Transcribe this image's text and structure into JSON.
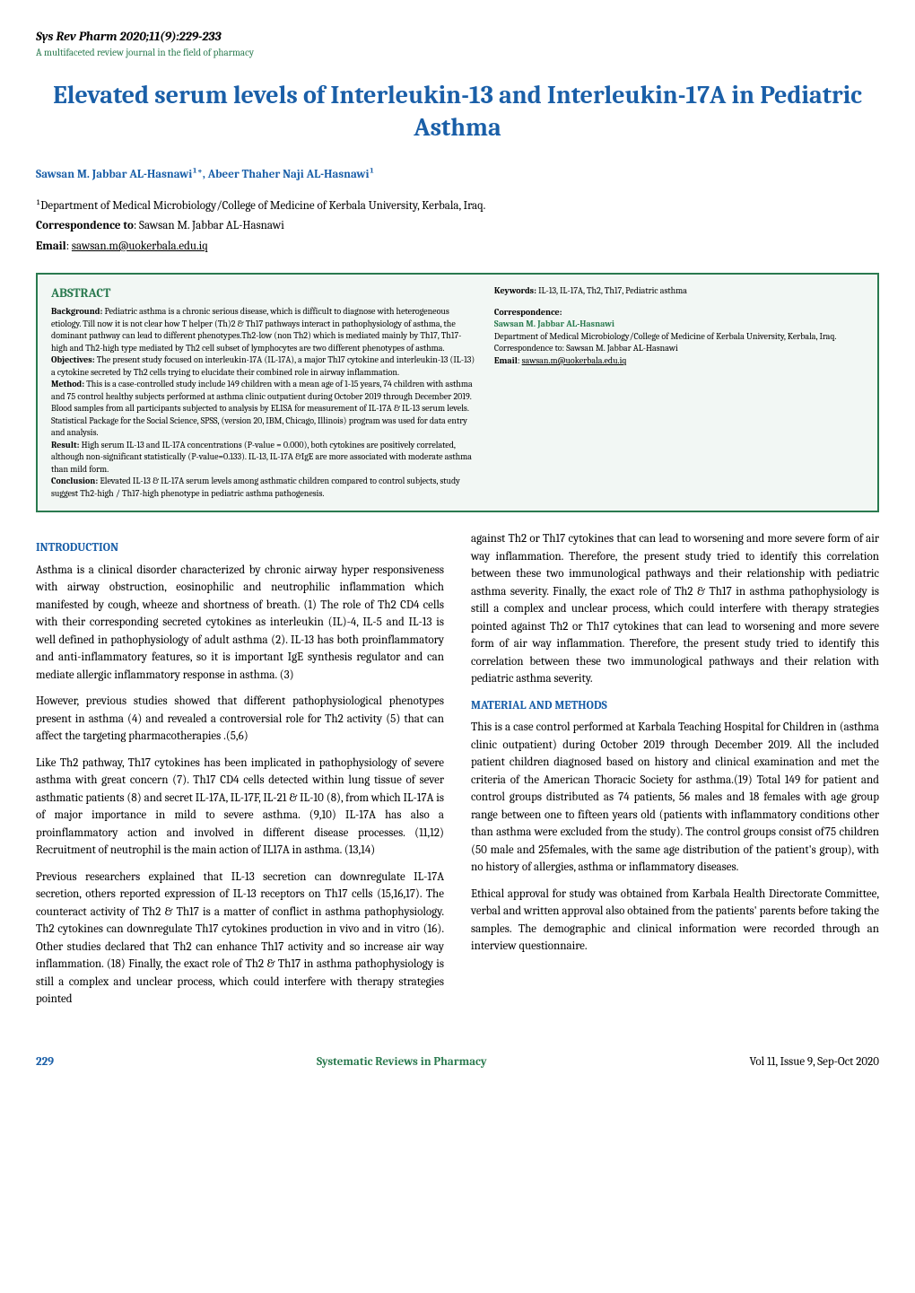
{
  "journal": {
    "title": "Sys Rev Pharm 2020;11(9):229-233",
    "subtitle": "A multifaceted review journal in the field of pharmacy"
  },
  "article_title": "Elevated serum levels of Interleukin-13 and Interleukin-17A in Pediatric Asthma",
  "authors": "Sawsan M. Jabbar AL-Hasnawi¹*, Abeer Thaher Naji AL-Hasnawi¹",
  "affiliation": "¹Department of Medical Microbiology/College of Medicine of Kerbala University, Kerbala, Iraq.",
  "correspondence_to_label": "Correspondence to",
  "correspondence_to_name": ": Sawsan M. Jabbar AL-Hasnawi",
  "email_label": "Email",
  "email_value": "sawsan.m@uokerbala.edu.iq",
  "abstract": {
    "heading": "ABSTRACT",
    "background_label": "Background:",
    "background_text": " Pediatric asthma is a chronic serious disease, which is difficult to diagnose with heterogeneous etiology. Till now it is not clear how T helper (Th)2 & Th17 pathways interact in pathophysiology of asthma, the dominant pathway can lead to different phenotypes.Th2-low (non Th2) which is mediated mainly by Th17, Th17-high and Th2-high type mediated by Th2 cell subset of lymphocytes are two different phenotypes of asthma.",
    "objectives_label": "Objectives:",
    "objectives_text": " The present study focused on interleukin-17A (IL-17A), a major Th17 cytokine and interleukin-13 (IL-13) a cytokine secreted by Th2 cells trying to elucidate their combined role in airway inflammation.",
    "method_label": "Method:",
    "method_text": " This is a case-controlled study include 149 children with a mean age of 1-15 years, 74 children with asthma and 75 control healthy subjects performed at asthma clinic outpatient during October 2019 through December 2019. Blood samples from all participants subjected to analysis by ELISA for measurement of IL-17A & IL-13 serum levels. Statistical Package for the Social Science, SPSS, (version 20, IBM, Chicago, Illinois) program was used for data entry and analysis.",
    "result_label": "Result:",
    "result_text": " High serum IL-13 and IL-17A concentrations (P-value = 0.000), both cytokines are positively correlated, although non-significant statistically (P-value=0.133). IL-13, IL-17A &IgE are more associated with moderate asthma than mild form.",
    "conclusion_label": "Conclusion:",
    "conclusion_text": " Elevated IL-13 & IL-17A serum levels among asthmatic children compared to control subjects, study suggest Th2-high / Th17-high phenotype in pediatric asthma pathogenesis.",
    "keywords_label": "Keywords:",
    "keywords_text": " IL-13, IL-17A, Th2, Th17, Pediatric asthma",
    "correspondence_header": "Correspondence:",
    "corr_name": "Sawsan M. Jabbar AL-Hasnawi",
    "corr_dept": "Department of Medical Microbiology/College of Medicine of Kerbala University, Kerbala, Iraq.",
    "corr_to": "Correspondence to: Sawsan M. Jabbar AL-Hasnawi",
    "corr_email_label": "Email",
    "corr_email": "sawsan.m@uokerbala.edu.iq"
  },
  "sections": {
    "introduction_heading": "INTRODUCTION",
    "intro_p1": "Asthma is a clinical disorder characterized by chronic airway hyper responsiveness with airway obstruction, eosinophilic and neutrophilic inflammation which manifested by cough, wheeze and shortness of breath. (1) The role of Th2 CD4 cells with their corresponding secreted cytokines as interleukin (IL)-4, IL-5 and IL-13 is well defined in pathophysiology of adult asthma (2). IL-13 has both proinflammatory and anti-inflammatory features, so it is important IgE synthesis regulator and can mediate allergic inflammatory response in asthma. (3)",
    "intro_p2": "However, previous studies showed that different pathophysiological phenotypes present in asthma (4) and revealed a controversial role for Th2 activity (5) that can affect the targeting pharmacotherapies .(5,6)",
    "intro_p3": "Like Th2 pathway, Th17 cytokines has been implicated in pathophysiology of severe asthma with great concern (7). Th17 CD4 cells detected within lung tissue of sever asthmatic patients (8) and secret IL-17A, IL-17F, IL-21 & IL-10 (8), from which IL-17A is of major importance in mild to severe asthma. (9,10) IL-17A has also a proinflammatory action and involved in different disease processes. (11,12) Recruitment of neutrophil is the main action of IL17A in asthma. (13,14)",
    "intro_p4": "Previous researchers explained that IL-13 secretion can downregulate IL-17A secretion, others reported expression of IL-13 receptors on Th17 cells (15,16,17). The counteract activity of Th2 & Th17 is a matter of conflict in asthma pathophysiology. Th2 cytokines can downregulate Th17 cytokines production in vivo and in vitro (16). Other studies declared that Th2 can enhance Th17 activity and so increase air way inflammation. (18) Finally, the exact role of Th2 & Th17 in asthma pathophysiology is still a complex and unclear process, which could interfere with therapy strategies pointed",
    "intro_p5": "against Th2 or Th17 cytokines that can lead to worsening and more severe form of air way inflammation. Therefore, the present study tried to identify this correlation between these two immunological pathways and their relationship with pediatric asthma severity. Finally, the exact role of Th2 & Th17 in asthma pathophysiology is still a complex and unclear process, which could interfere with therapy strategies pointed against Th2 or Th17 cytokines that can lead to worsening and more severe form of air way inflammation. Therefore, the present study tried to identify this correlation between these two immunological pathways and their relation with pediatric asthma severity.",
    "methods_heading": "MATERIAL AND METHODS",
    "methods_p1": "This is a case control performed at Karbala Teaching Hospital for Children in (asthma clinic outpatient) during October 2019 through December 2019. All the included patient children diagnosed based on history and clinical examination and met the criteria of the American Thoracic Society for asthma.(19) Total 149 for patient and control groups distributed as 74 patients, 56 males and 18 females with age group range between one to fifteen years old (patients with inflammatory conditions other than asthma were excluded from the study). The control groups consist of75 children (50 male and 25females, with the same age distribution of the patient's group), with no history of allergies, asthma or inflammatory diseases.",
    "methods_p2": "Ethical approval for study was obtained from Karbala Health Directorate Committee, verbal and written approval also obtained from the patients' parents before taking the samples. The demographic and clinical information were recorded through an interview questionnaire."
  },
  "footer": {
    "page": "229",
    "center": "Systematic Reviews in Pharmacy",
    "right": "Vol 11, Issue 9, Sep-Oct 2020"
  },
  "colors": {
    "title_blue": "#1a5fa8",
    "green": "#2a7a4f",
    "abstract_bg": "#f2f7f4"
  }
}
